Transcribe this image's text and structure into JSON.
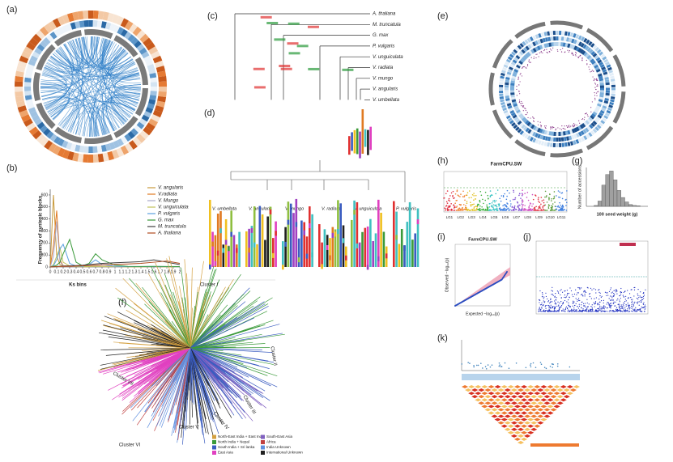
{
  "panel_labels": [
    "(a)",
    "(b)",
    "(c)",
    "(d)",
    "(e)",
    "(f)",
    "(g)",
    "(h)",
    "(i)",
    "(j)",
    "(k)"
  ],
  "chart_data": [
    {
      "type": "line",
      "ylabel": "Frequency of syntenic blocks",
      "xlabel": "Ks bins",
      "x": [
        0,
        0.05,
        0.1,
        0.15,
        0.2,
        0.3,
        0.4,
        0.5,
        0.6,
        0.7,
        0.8,
        1.0,
        1.2,
        1.4,
        1.6,
        1.8,
        2.0
      ],
      "xlim": [
        0,
        2
      ],
      "ylim": [
        0,
        620
      ],
      "xticks": [
        0,
        0.1,
        0.2,
        0.3,
        0.4,
        0.5,
        0.6,
        0.7,
        0.8,
        0.9,
        1,
        1.1,
        1.2,
        1.3,
        1.4,
        1.5,
        1.6,
        1.7,
        1.8,
        1.9,
        2
      ],
      "yticks": [
        0,
        100,
        200,
        300,
        400,
        500,
        600
      ],
      "series": [
        {
          "name": "V. angularis",
          "color": "#c89a3c",
          "values": [
            0,
            600,
            90,
            20,
            10,
            5,
            3,
            2,
            2,
            5,
            3,
            2,
            2,
            2,
            3,
            2,
            1
          ]
        },
        {
          "name": "V.radiata",
          "color": "#e07a22",
          "values": [
            0,
            180,
            470,
            60,
            12,
            5,
            4,
            3,
            3,
            6,
            4,
            3,
            2,
            2,
            3,
            2,
            1
          ]
        },
        {
          "name": "V. Mungo",
          "color": "#a8a8c8",
          "values": [
            0,
            90,
            380,
            45,
            10,
            5,
            3,
            3,
            2,
            5,
            3,
            2,
            2,
            2,
            2,
            2,
            1
          ]
        },
        {
          "name": "V. unguiculata",
          "color": "#c2c25a",
          "values": [
            0,
            20,
            90,
            160,
            40,
            8,
            4,
            3,
            3,
            6,
            4,
            3,
            2,
            2,
            3,
            2,
            1
          ]
        },
        {
          "name": "P. vulgaris",
          "color": "#5aa0e0",
          "values": [
            0,
            10,
            60,
            150,
            190,
            30,
            8,
            5,
            20,
            60,
            20,
            6,
            3,
            3,
            4,
            3,
            2
          ]
        },
        {
          "name": "G. max",
          "color": "#3a9a3a",
          "values": [
            0,
            5,
            15,
            40,
            110,
            230,
            40,
            10,
            30,
            110,
            60,
            15,
            5,
            4,
            5,
            4,
            3
          ]
        },
        {
          "name": "M. truncatula",
          "color": "#404040",
          "values": [
            0,
            2,
            4,
            6,
            8,
            10,
            12,
            15,
            20,
            25,
            30,
            35,
            40,
            45,
            60,
            40,
            20
          ]
        },
        {
          "name": "A. thaliana",
          "color": "#b04a1e",
          "values": [
            0,
            2,
            3,
            4,
            5,
            6,
            8,
            10,
            12,
            15,
            18,
            22,
            25,
            30,
            40,
            50,
            30
          ]
        }
      ]
    },
    {
      "type": "histogram",
      "ylabel": "Number of accessions",
      "xlabel": "100 seed weight (g)",
      "bins": [
        2,
        3,
        4,
        5,
        6,
        7,
        8,
        9,
        10,
        11,
        12,
        13,
        14
      ],
      "values": [
        5,
        30,
        120,
        180,
        200,
        150,
        90,
        50,
        25,
        10,
        5,
        3
      ],
      "xlim": [
        0,
        16
      ],
      "ylim": [
        0,
        220
      ],
      "color": "#a0a0a0"
    }
  ],
  "tree_c": {
    "taxa": [
      "A. thaliana",
      "M. truncatula",
      "G. max",
      "P. vulgaris",
      "V. unguiculata",
      "V. radiata",
      "V. mungo",
      "V. angularis",
      "V. umbellata"
    ]
  },
  "panel_d": {
    "species": [
      "V. umbellata",
      "V. angularis",
      "V. mungo",
      "V. radiata",
      "V. unguiculata",
      "P. vulgaris"
    ]
  },
  "panel_f": {
    "clusters": [
      "Cluster I",
      "Cluster II",
      "Cluster III",
      "Cluster IV",
      "Cluster V",
      "Cluster VI",
      "Cluster VII"
    ],
    "legend": [
      {
        "name": "North-East India + East India",
        "color": "#d4a040"
      },
      {
        "name": "North India + Nepal",
        "color": "#3a9a3a"
      },
      {
        "name": "South India + Sri lanka",
        "color": "#3a5cc0"
      },
      {
        "name": "East Asia",
        "color": "#e040c0"
      },
      {
        "name": "South-East Asia",
        "color": "#8060c0"
      },
      {
        "name": "Africa",
        "color": "#c04040"
      },
      {
        "name": "India Unknown",
        "color": "#6090e0"
      },
      {
        "name": "International Unknown",
        "color": "#202020"
      }
    ]
  },
  "panel_h": {
    "title": "FarmCPU.SW",
    "groups": [
      "LG1",
      "LG2",
      "LG3",
      "LG4",
      "LG5",
      "LG6",
      "LG7",
      "LG8",
      "LG9",
      "LG10",
      "LG11"
    ]
  },
  "panel_i": {
    "title": "FarmCPU.SW",
    "ylabel": "Observed −log₁₀(p)",
    "xlabel": "Expected −log₁₀(p)"
  }
}
